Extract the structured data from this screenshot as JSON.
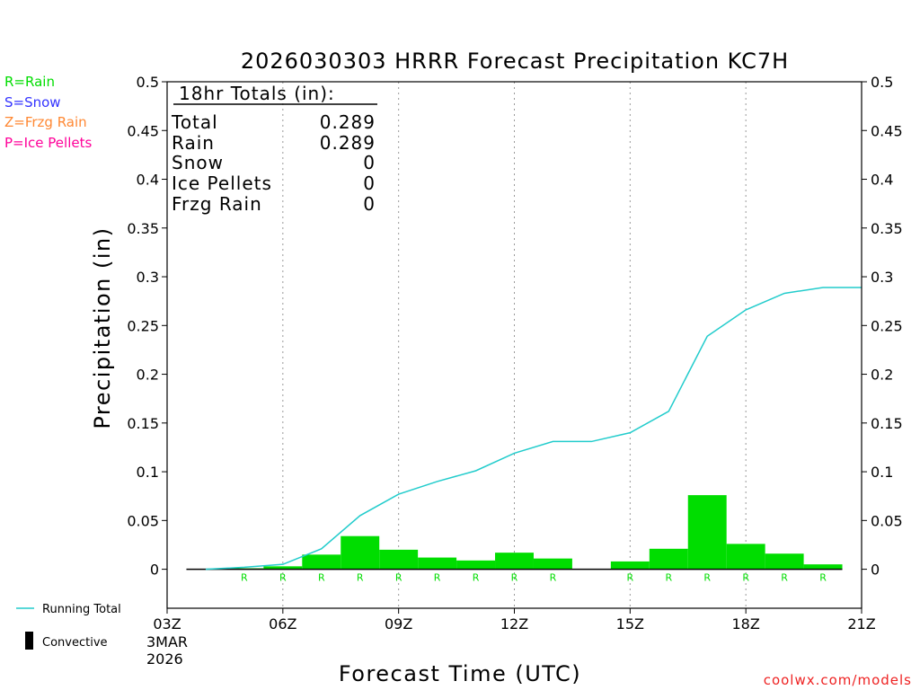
{
  "chart_data": {
    "type": "bar",
    "title": "2026030303 HRRR Forecast Precipitation KC7H",
    "ylabel": "Precipitation (in)",
    "xlabel": "Forecast Time (UTC)",
    "ylim": [
      -0.04,
      0.5
    ],
    "yticks": [
      "0",
      "0.05",
      "0.1",
      "0.15",
      "0.2",
      "0.25",
      "0.3",
      "0.35",
      "0.4",
      "0.45",
      "0.5"
    ],
    "ytick_values": [
      0,
      0.05,
      0.1,
      0.15,
      0.2,
      0.25,
      0.3,
      0.35,
      0.4,
      0.45,
      0.5
    ],
    "xlim": [
      3,
      21
    ],
    "xticks": [
      "03Z",
      "06Z",
      "09Z",
      "12Z",
      "15Z",
      "18Z",
      "21Z"
    ],
    "xtick_values": [
      3,
      6,
      9,
      12,
      15,
      18,
      21
    ],
    "x_start_label": [
      "3MAR",
      "2026"
    ],
    "grid": "vertical dotted at 06Z, 09Z, 12Z, 15Z, 18Z",
    "hours": [
      4,
      5,
      6,
      7,
      8,
      9,
      10,
      11,
      12,
      13,
      14,
      15,
      16,
      17,
      18,
      19,
      20
    ],
    "hourly": [
      0.0,
      0.001,
      0.003,
      0.015,
      0.034,
      0.02,
      0.012,
      0.009,
      0.017,
      0.011,
      0.0,
      0.008,
      0.021,
      0.076,
      0.026,
      0.016,
      0.005
    ],
    "ptype": [
      "",
      "R",
      "R",
      "R",
      "R",
      "R",
      "R",
      "R",
      "R",
      "R",
      "",
      "R",
      "R",
      "R",
      "R",
      "R",
      "R"
    ],
    "running_total_x": [
      4,
      5,
      6,
      7,
      8,
      9,
      10,
      11,
      12,
      13,
      14,
      15,
      16,
      17,
      18,
      19,
      20,
      21
    ],
    "running_total": [
      0.0,
      0.002,
      0.005,
      0.021,
      0.055,
      0.077,
      0.09,
      0.101,
      0.119,
      0.131,
      0.131,
      0.14,
      0.162,
      0.239,
      0.266,
      0.283,
      0.289,
      0.289
    ],
    "colors": {
      "rain": "#00dd00",
      "snow": "#3333ff",
      "frzg": "#ff8833",
      "ice": "#ff0099",
      "total_line": "#22cccc"
    }
  },
  "ptype_legend": [
    {
      "text": "R=Rain",
      "color": "#00dd00"
    },
    {
      "text": "S=Snow",
      "color": "#3333ff"
    },
    {
      "text": "Z=Frzg Rain",
      "color": "#ff8833"
    },
    {
      "text": "P=Ice Pellets",
      "color": "#ff0099"
    }
  ],
  "totals_box": {
    "heading": "18hr Totals (in):",
    "rows": [
      {
        "label": "Total",
        "value": "0.289"
      },
      {
        "label": "Rain",
        "value": "0.289"
      },
      {
        "label": "Snow",
        "value": "0"
      },
      {
        "label": "Ice Pellets",
        "value": "0"
      },
      {
        "label": "Frzg Rain",
        "value": "0"
      }
    ]
  },
  "legend": {
    "running_total": "Running Total",
    "convective": "Convective"
  },
  "credit": "coolwx.com/models"
}
